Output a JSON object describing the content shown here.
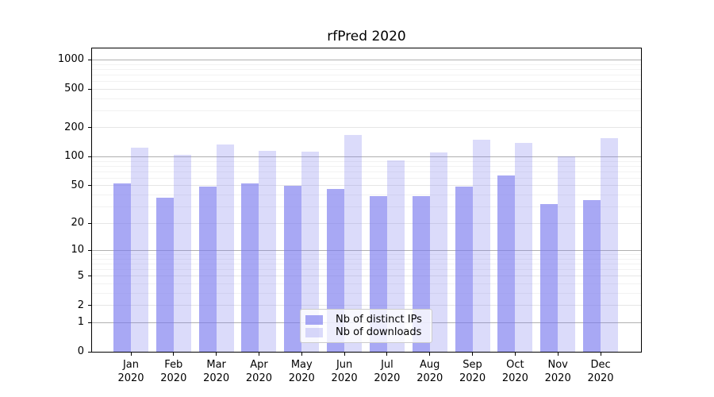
{
  "chart_data": {
    "type": "bar",
    "title": "rfPred 2020",
    "x": {
      "months": [
        "Jan",
        "Feb",
        "Mar",
        "Apr",
        "May",
        "Jun",
        "Jul",
        "Aug",
        "Sep",
        "Oct",
        "Nov",
        "Dec"
      ],
      "year": "2020"
    },
    "series": [
      {
        "name": "Nb of distinct IPs",
        "color": "rgba(121,121,238,0.65)",
        "values": [
          53,
          37,
          49,
          53,
          50,
          46,
          39,
          39,
          49,
          64,
          32,
          35
        ]
      },
      {
        "name": "Nb of downloads",
        "color": "rgba(121,121,238,0.27)",
        "values": [
          125,
          104,
          134,
          116,
          114,
          167,
          92,
          111,
          150,
          139,
          101,
          155
        ]
      }
    ],
    "yticks": [
      0,
      1,
      2,
      5,
      10,
      20,
      50,
      100,
      200,
      500,
      1000
    ],
    "scale": "log1p",
    "ylim": [
      0,
      1312
    ],
    "grid": {
      "on": true,
      "minor": true
    },
    "legend_position": "lower center",
    "colors": {
      "grid_decade": "#b0b0b0",
      "grid_major": "#e6e6e6",
      "grid_minor": "#f2f2f2",
      "axis": "#000000",
      "text": "#000000"
    },
    "gridline_values": {
      "decade": [
        1,
        10,
        100,
        1000
      ],
      "major": [
        2,
        5,
        20,
        50,
        200,
        500
      ],
      "minor": [
        3,
        4,
        6,
        7,
        8,
        9,
        30,
        40,
        60,
        70,
        80,
        90,
        300,
        400,
        600,
        700,
        800,
        900
      ]
    }
  }
}
